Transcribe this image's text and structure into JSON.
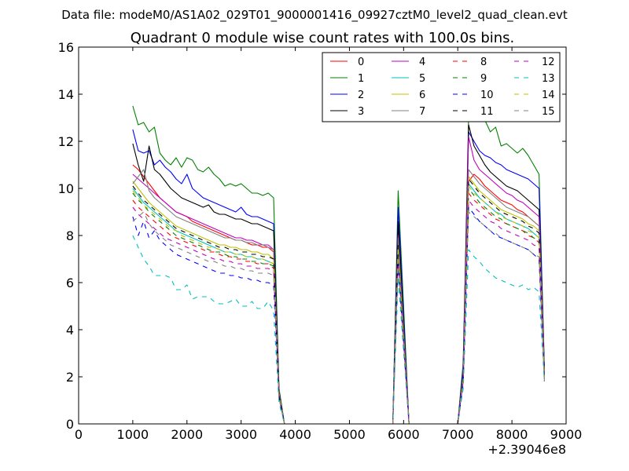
{
  "figure": {
    "suptitle": "Data file: modeM0/AS1A02_029T01_9000001416_09927cztM0_level2_quad_clean.evt"
  },
  "chart_data": {
    "type": "line",
    "title": "Quadrant 0 module wise count rates with 100.0s bins.",
    "xlabel": "",
    "ylabel": "",
    "x_offset_label": "+2.39046e8",
    "xlim": [
      0,
      9000
    ],
    "ylim": [
      0,
      16
    ],
    "xticks": [
      0,
      1000,
      2000,
      3000,
      4000,
      5000,
      6000,
      7000,
      8000,
      9000
    ],
    "yticks": [
      0,
      2,
      4,
      6,
      8,
      10,
      12,
      14,
      16
    ],
    "grid": false,
    "legend_position": "top-right",
    "legend_columns": 4,
    "x": [
      1000,
      1100,
      1200,
      1300,
      1400,
      1500,
      1600,
      1700,
      1800,
      1900,
      2000,
      2100,
      2200,
      2300,
      2400,
      2500,
      2600,
      2700,
      2800,
      2900,
      3000,
      3100,
      3200,
      3300,
      3400,
      3500,
      3600,
      3700,
      3800,
      3900,
      4000,
      5700,
      5800,
      5900,
      6000,
      6100,
      6200,
      7000,
      7100,
      7200,
      7300,
      7400,
      7500,
      7600,
      7700,
      7800,
      7900,
      8000,
      8100,
      8200,
      8300,
      8400,
      8500,
      8600
    ],
    "series": [
      {
        "name": "0",
        "color": "#ff0000",
        "dash": "solid",
        "values": [
          11.0,
          10.8,
          10.5,
          10.2,
          9.9,
          9.6,
          9.4,
          9.2,
          9.0,
          8.9,
          8.8,
          8.6,
          8.5,
          8.4,
          8.3,
          8.2,
          8.1,
          8.0,
          7.9,
          7.8,
          7.8,
          7.7,
          7.6,
          7.6,
          7.5,
          7.5,
          7.3,
          1.3,
          0,
          0,
          0,
          0,
          0,
          8.2,
          4.0,
          0,
          0,
          0,
          2.0,
          10.3,
          10.6,
          10.4,
          10.1,
          9.9,
          9.7,
          9.5,
          9.4,
          9.3,
          9.1,
          9.0,
          8.8,
          8.6,
          8.4,
          2.2
        ]
      },
      {
        "name": "1",
        "color": "#008000",
        "dash": "solid",
        "values": [
          13.5,
          12.7,
          12.8,
          12.4,
          12.6,
          11.5,
          11.2,
          11.0,
          11.3,
          10.9,
          11.3,
          11.2,
          10.8,
          10.7,
          10.9,
          10.6,
          10.4,
          10.1,
          10.2,
          10.1,
          10.2,
          10.0,
          9.8,
          9.8,
          9.7,
          9.8,
          9.6,
          1.5,
          0,
          0,
          0,
          0,
          0,
          9.9,
          5.0,
          0,
          0,
          0,
          2.6,
          13.0,
          14.2,
          13.4,
          12.9,
          12.4,
          12.6,
          11.8,
          11.9,
          11.7,
          11.5,
          11.7,
          11.4,
          11.0,
          10.6,
          2.4
        ]
      },
      {
        "name": "2",
        "color": "#0000ff",
        "dash": "solid",
        "values": [
          12.5,
          11.6,
          11.5,
          11.6,
          11.0,
          11.2,
          10.9,
          10.7,
          10.4,
          10.2,
          10.6,
          10.0,
          9.8,
          9.6,
          9.5,
          9.4,
          9.3,
          9.2,
          9.1,
          9.0,
          9.2,
          8.9,
          8.8,
          8.8,
          8.7,
          8.6,
          8.5,
          1.4,
          0,
          0,
          0,
          0,
          0,
          9.2,
          4.6,
          0,
          0,
          0,
          2.4,
          12.4,
          12.0,
          11.6,
          11.4,
          11.3,
          11.1,
          11.0,
          10.8,
          10.7,
          10.6,
          10.5,
          10.4,
          10.2,
          10.0,
          2.3
        ]
      },
      {
        "name": "3",
        "color": "#000000",
        "dash": "solid",
        "values": [
          11.9,
          11.0,
          10.3,
          11.8,
          10.8,
          10.6,
          10.3,
          10.0,
          9.8,
          9.6,
          9.5,
          9.4,
          9.3,
          9.2,
          9.3,
          9.0,
          8.9,
          8.9,
          8.8,
          8.7,
          8.7,
          8.6,
          8.5,
          8.5,
          8.4,
          8.3,
          8.2,
          1.4,
          0,
          0,
          0,
          0,
          0,
          8.6,
          4.3,
          0,
          0,
          0,
          2.2,
          12.7,
          11.8,
          11.4,
          11.0,
          10.7,
          10.5,
          10.3,
          10.1,
          10.0,
          9.9,
          9.7,
          9.5,
          9.3,
          9.1,
          2.2
        ]
      },
      {
        "name": "4",
        "color": "#bf00bf",
        "dash": "solid",
        "values": [
          10.6,
          10.4,
          10.2,
          10.0,
          9.8,
          9.6,
          9.4,
          9.2,
          9.0,
          8.9,
          8.8,
          8.7,
          8.6,
          8.5,
          8.4,
          8.3,
          8.2,
          8.1,
          8.0,
          7.9,
          7.9,
          7.8,
          7.8,
          7.7,
          7.6,
          7.6,
          7.4,
          1.3,
          0,
          0,
          0,
          0,
          0,
          8.0,
          4.0,
          0,
          0,
          0,
          2.0,
          12.2,
          11.2,
          10.8,
          10.6,
          10.4,
          10.2,
          10.0,
          9.8,
          9.7,
          9.5,
          9.4,
          9.2,
          9.0,
          8.8,
          2.1
        ]
      },
      {
        "name": "5",
        "color": "#00bfbf",
        "dash": "solid",
        "values": [
          10.0,
          9.7,
          9.4,
          9.2,
          9.0,
          8.8,
          8.6,
          8.4,
          8.2,
          8.1,
          8.0,
          7.9,
          7.8,
          7.7,
          7.6,
          7.5,
          7.4,
          7.3,
          7.3,
          7.2,
          7.2,
          7.1,
          7.1,
          7.0,
          7.0,
          6.9,
          6.8,
          1.2,
          0,
          0,
          0,
          0,
          0,
          7.4,
          3.7,
          0,
          0,
          0,
          1.9,
          10.2,
          9.9,
          9.6,
          9.4,
          9.2,
          9.0,
          8.9,
          8.7,
          8.6,
          8.5,
          8.4,
          8.3,
          8.1,
          7.9,
          1.9
        ]
      },
      {
        "name": "6",
        "color": "#bfbf00",
        "dash": "solid",
        "values": [
          10.3,
          10.0,
          9.7,
          9.4,
          9.2,
          9.0,
          8.8,
          8.6,
          8.4,
          8.3,
          8.2,
          8.1,
          8.0,
          7.9,
          7.8,
          7.7,
          7.6,
          7.6,
          7.5,
          7.5,
          7.4,
          7.4,
          7.3,
          7.3,
          7.2,
          7.2,
          7.0,
          1.2,
          0,
          0,
          0,
          0,
          0,
          7.6,
          3.8,
          0,
          0,
          0,
          1.9,
          10.5,
          10.2,
          9.9,
          9.7,
          9.5,
          9.3,
          9.1,
          9.0,
          8.9,
          8.8,
          8.7,
          8.5,
          8.4,
          8.2,
          2.0
        ]
      },
      {
        "name": "7",
        "color": "#808080",
        "dash": "solid",
        "values": [
          10.2,
          10.5,
          10.8,
          9.9,
          9.6,
          9.4,
          9.2,
          9.0,
          8.8,
          8.7,
          8.6,
          8.5,
          8.4,
          8.3,
          8.2,
          8.1,
          8.0,
          7.9,
          7.9,
          7.8,
          7.8,
          7.7,
          7.7,
          7.6,
          7.6,
          7.5,
          7.4,
          1.3,
          0,
          0,
          0,
          0,
          0,
          7.9,
          3.9,
          0,
          0,
          0,
          2.0,
          10.8,
          10.5,
          10.2,
          10.0,
          9.8,
          9.6,
          9.4,
          9.2,
          9.1,
          9.0,
          8.9,
          8.8,
          8.6,
          8.4,
          2.1
        ]
      },
      {
        "name": "8",
        "color": "#ff0000",
        "dash": "dashed",
        "values": [
          9.5,
          9.2,
          9.0,
          8.8,
          8.6,
          8.4,
          8.2,
          8.0,
          7.9,
          7.8,
          7.7,
          7.6,
          7.5,
          7.4,
          7.3,
          7.3,
          7.2,
          7.1,
          7.1,
          7.0,
          7.0,
          6.9,
          6.9,
          6.8,
          6.8,
          6.8,
          6.6,
          1.2,
          0,
          0,
          0,
          0,
          0,
          7.2,
          3.6,
          0,
          0,
          0,
          1.8,
          9.8,
          9.5,
          9.3,
          9.1,
          8.9,
          8.7,
          8.6,
          8.5,
          8.4,
          8.3,
          8.2,
          8.0,
          7.9,
          7.7,
          1.9
        ]
      },
      {
        "name": "9",
        "color": "#008000",
        "dash": "dashed",
        "values": [
          9.8,
          9.5,
          9.3,
          9.0,
          8.8,
          8.6,
          8.4,
          8.2,
          8.0,
          7.9,
          7.8,
          7.7,
          7.6,
          7.5,
          7.4,
          7.3,
          7.3,
          7.2,
          7.1,
          7.1,
          7.0,
          7.0,
          6.9,
          6.9,
          6.8,
          6.8,
          6.7,
          1.2,
          0,
          0,
          0,
          0,
          0,
          7.3,
          3.6,
          0,
          0,
          0,
          1.8,
          10.0,
          9.7,
          9.4,
          9.2,
          9.0,
          8.8,
          8.7,
          8.5,
          8.4,
          8.3,
          8.2,
          8.1,
          7.9,
          7.8,
          1.9
        ]
      },
      {
        "name": "10",
        "color": "#0000ff",
        "dash": "dashed",
        "values": [
          8.8,
          8.0,
          8.6,
          7.9,
          8.2,
          7.8,
          7.6,
          7.4,
          7.2,
          7.1,
          7.0,
          6.9,
          6.8,
          6.7,
          6.6,
          6.5,
          6.4,
          6.4,
          6.3,
          6.3,
          6.2,
          6.2,
          6.1,
          6.1,
          6.0,
          6.0,
          5.9,
          1.1,
          0,
          0,
          0,
          0,
          0,
          6.8,
          3.4,
          0,
          0,
          0,
          1.7,
          9.2,
          8.9,
          8.6,
          8.4,
          8.2,
          8.0,
          7.9,
          7.8,
          7.7,
          7.6,
          7.5,
          7.4,
          7.2,
          7.0,
          1.8
        ]
      },
      {
        "name": "11",
        "color": "#000000",
        "dash": "dashed",
        "values": [
          10.1,
          9.8,
          9.5,
          9.3,
          9.1,
          8.9,
          8.7,
          8.5,
          8.3,
          8.2,
          8.1,
          8.0,
          7.9,
          7.8,
          7.7,
          7.6,
          7.5,
          7.5,
          7.4,
          7.4,
          7.3,
          7.3,
          7.2,
          7.2,
          7.1,
          7.1,
          7.0,
          1.2,
          0,
          0,
          0,
          0,
          0,
          7.6,
          3.8,
          0,
          0,
          0,
          1.9,
          10.4,
          10.1,
          9.8,
          9.6,
          9.4,
          9.2,
          9.0,
          8.9,
          8.8,
          8.7,
          8.6,
          8.4,
          8.3,
          8.1,
          2.0
        ]
      },
      {
        "name": "12",
        "color": "#bf00bf",
        "dash": "dashed",
        "values": [
          9.2,
          8.9,
          8.7,
          8.5,
          8.3,
          8.1,
          7.9,
          7.8,
          7.7,
          7.6,
          7.5,
          7.4,
          7.3,
          7.2,
          7.1,
          7.0,
          7.0,
          6.9,
          6.9,
          6.8,
          6.8,
          6.7,
          6.7,
          6.6,
          6.6,
          6.6,
          6.5,
          1.1,
          0,
          0,
          0,
          0,
          0,
          7.0,
          3.5,
          0,
          0,
          0,
          1.8,
          9.5,
          9.2,
          9.0,
          8.8,
          8.6,
          8.5,
          8.3,
          8.2,
          8.1,
          8.0,
          7.9,
          7.8,
          7.6,
          7.5,
          1.9
        ]
      },
      {
        "name": "13",
        "color": "#00bfbf",
        "dash": "dashed",
        "values": [
          8.0,
          7.5,
          7.0,
          6.7,
          6.3,
          6.3,
          6.3,
          6.2,
          5.7,
          5.7,
          5.9,
          5.3,
          5.4,
          5.4,
          5.4,
          5.2,
          5.1,
          5.1,
          5.2,
          5.3,
          5.0,
          5.0,
          5.2,
          4.9,
          4.9,
          5.2,
          4.8,
          0.9,
          0,
          0,
          0,
          0,
          0,
          6.2,
          3.1,
          0,
          0,
          0,
          1.5,
          7.4,
          7.1,
          6.9,
          6.6,
          6.4,
          6.2,
          6.1,
          6.0,
          5.9,
          5.8,
          5.9,
          5.7,
          5.8,
          5.6,
          1.8
        ]
      },
      {
        "name": "14",
        "color": "#bfbf00",
        "dash": "dashed",
        "values": [
          9.9,
          9.6,
          9.3,
          9.1,
          8.9,
          8.7,
          8.5,
          8.3,
          8.2,
          8.0,
          7.9,
          7.8,
          7.7,
          7.6,
          7.5,
          7.5,
          7.4,
          7.3,
          7.3,
          7.2,
          7.2,
          7.1,
          7.1,
          7.0,
          7.0,
          6.9,
          6.8,
          1.2,
          0,
          0,
          0,
          0,
          0,
          7.5,
          3.7,
          0,
          0,
          0,
          1.9,
          10.1,
          9.8,
          9.6,
          9.4,
          9.2,
          9.0,
          8.8,
          8.7,
          8.6,
          8.5,
          8.4,
          8.2,
          8.1,
          7.9,
          1.9
        ]
      },
      {
        "name": "15",
        "color": "#808080",
        "dash": "dashed",
        "values": [
          8.6,
          8.8,
          9.0,
          8.5,
          8.2,
          8.0,
          7.8,
          7.6,
          7.5,
          7.4,
          7.3,
          7.2,
          7.1,
          7.0,
          6.9,
          6.9,
          6.8,
          6.7,
          6.7,
          6.6,
          6.6,
          6.5,
          6.5,
          6.4,
          6.4,
          6.4,
          6.3,
          1.1,
          0,
          0,
          0,
          0,
          0,
          6.9,
          3.4,
          0,
          0,
          0,
          1.7,
          9.0,
          8.8,
          8.6,
          8.4,
          8.2,
          8.1,
          7.9,
          7.8,
          7.7,
          7.6,
          7.5,
          7.4,
          7.2,
          7.1,
          1.8
        ]
      }
    ]
  }
}
